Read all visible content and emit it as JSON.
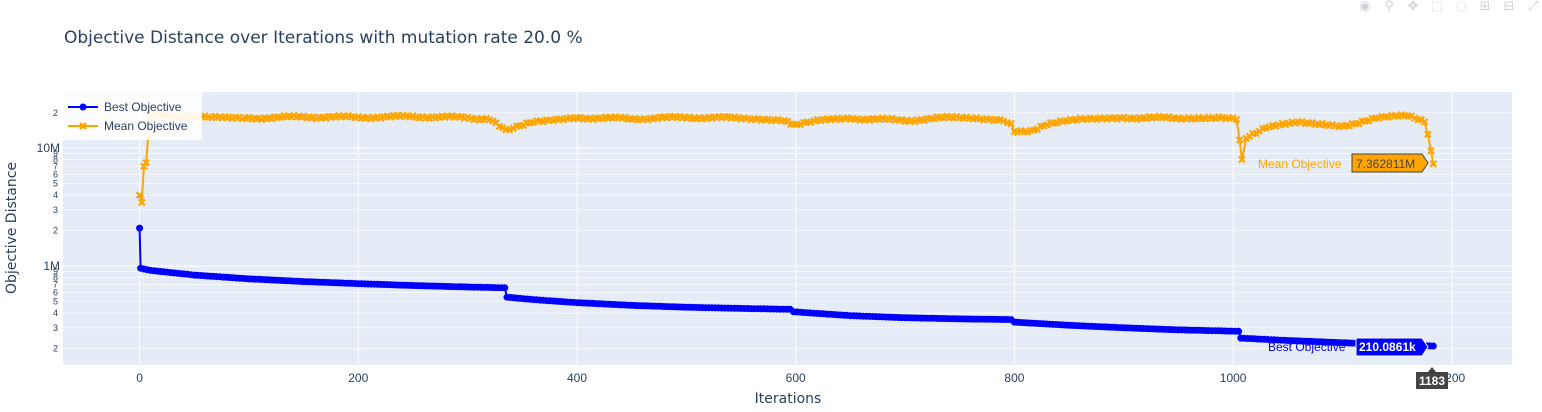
{
  "chart_data": {
    "type": "line",
    "title": "Objective Distance over Iterations with mutation rate 20.0 %",
    "xlabel": "Iterations",
    "ylabel": "Objective Distance",
    "x_ticks": [
      "0",
      "200",
      "400",
      "600",
      "800",
      "1000",
      "1200"
    ],
    "xlim": [
      -70,
      1255
    ],
    "y_scale": "log",
    "ylim": [
      145000,
      30000000
    ],
    "y_major_ticks": [
      {
        "value": 1000000,
        "label": "1M"
      },
      {
        "value": 10000000,
        "label": "10M"
      }
    ],
    "y_minor_ticks": [
      {
        "value": 200000,
        "label": "2"
      },
      {
        "value": 300000,
        "label": "3"
      },
      {
        "value": 400000,
        "label": "4"
      },
      {
        "value": 500000,
        "label": "5"
      },
      {
        "value": 600000,
        "label": "6"
      },
      {
        "value": 700000,
        "label": "7"
      },
      {
        "value": 800000,
        "label": "8"
      },
      {
        "value": 900000,
        "label": "9"
      },
      {
        "value": 2000000,
        "label": "2"
      },
      {
        "value": 3000000,
        "label": "3"
      },
      {
        "value": 4000000,
        "label": "4"
      },
      {
        "value": 5000000,
        "label": "5"
      },
      {
        "value": 6000000,
        "label": "6"
      },
      {
        "value": 7000000,
        "label": "7"
      },
      {
        "value": 8000000,
        "label": "8"
      },
      {
        "value": 9000000,
        "label": "9"
      },
      {
        "value": 20000000,
        "label": "2"
      }
    ],
    "grid": true,
    "legend_position": "top-left",
    "series": [
      {
        "name": "Best Objective",
        "color": "#0000ff",
        "marker": "circle",
        "points": [
          [
            0,
            2100000
          ],
          [
            1,
            960000
          ],
          [
            10,
            920000
          ],
          [
            50,
            840000
          ],
          [
            100,
            780000
          ],
          [
            150,
            740000
          ],
          [
            200,
            710000
          ],
          [
            250,
            685000
          ],
          [
            300,
            665000
          ],
          [
            334,
            655000
          ],
          [
            336,
            545000
          ],
          [
            360,
            520000
          ],
          [
            400,
            490000
          ],
          [
            450,
            465000
          ],
          [
            500,
            448000
          ],
          [
            550,
            438000
          ],
          [
            595,
            430000
          ],
          [
            598,
            410000
          ],
          [
            650,
            380000
          ],
          [
            700,
            365000
          ],
          [
            750,
            357000
          ],
          [
            797,
            352000
          ],
          [
            800,
            335000
          ],
          [
            850,
            315000
          ],
          [
            900,
            300000
          ],
          [
            950,
            288000
          ],
          [
            1005,
            280000
          ],
          [
            1007,
            245000
          ],
          [
            1050,
            234000
          ],
          [
            1100,
            224000
          ],
          [
            1150,
            216000
          ],
          [
            1183,
            210086
          ]
        ]
      },
      {
        "name": "Mean Objective",
        "color": "#ffa500",
        "marker": "x",
        "points": [
          [
            0,
            4000000
          ],
          [
            2,
            3500000
          ],
          [
            4,
            7000000
          ],
          [
            6,
            7500000
          ],
          [
            8,
            13000000
          ],
          [
            10,
            18000000
          ],
          [
            14,
            19500000
          ],
          [
            30,
            18800000
          ],
          [
            60,
            18200000
          ],
          [
            100,
            18000000
          ],
          [
            150,
            18500000
          ],
          [
            200,
            18300000
          ],
          [
            250,
            18600000
          ],
          [
            300,
            18200000
          ],
          [
            320,
            17500000
          ],
          [
            335,
            14000000
          ],
          [
            345,
            15000000
          ],
          [
            360,
            16500000
          ],
          [
            400,
            18200000
          ],
          [
            450,
            17800000
          ],
          [
            500,
            18300000
          ],
          [
            550,
            18000000
          ],
          [
            590,
            17500000
          ],
          [
            598,
            15500000
          ],
          [
            620,
            17000000
          ],
          [
            650,
            18000000
          ],
          [
            700,
            17200000
          ],
          [
            750,
            18400000
          ],
          [
            790,
            17600000
          ],
          [
            797,
            16000000
          ],
          [
            800,
            14000000
          ],
          [
            815,
            14200000
          ],
          [
            830,
            16000000
          ],
          [
            860,
            17500000
          ],
          [
            900,
            18200000
          ],
          [
            950,
            18000000
          ],
          [
            990,
            18500000
          ],
          [
            1003,
            18000000
          ],
          [
            1006,
            12000000
          ],
          [
            1008,
            8000000
          ],
          [
            1012,
            12500000
          ],
          [
            1030,
            15000000
          ],
          [
            1060,
            16500000
          ],
          [
            1100,
            15500000
          ],
          [
            1130,
            18000000
          ],
          [
            1160,
            18800000
          ],
          [
            1175,
            17000000
          ],
          [
            1178,
            13500000
          ],
          [
            1181,
            9500000
          ],
          [
            1183,
            7362811
          ]
        ]
      }
    ],
    "hover": {
      "best": {
        "name": "Best Objective",
        "value": "210.0861k"
      },
      "mean": {
        "name": "Mean Objective",
        "value": "7.362811M"
      },
      "x_value": "1183"
    }
  },
  "modebar": {
    "icons": [
      "camera-icon",
      "zoom-icon",
      "pan-icon",
      "box-select-icon",
      "lasso-icon",
      "zoom-in-icon",
      "zoom-out-icon",
      "autoscale-icon"
    ],
    "glyphs": [
      "◉",
      "⚲",
      "✥",
      "⬚",
      "◌",
      "⊞",
      "⊟",
      "⤢"
    ]
  }
}
